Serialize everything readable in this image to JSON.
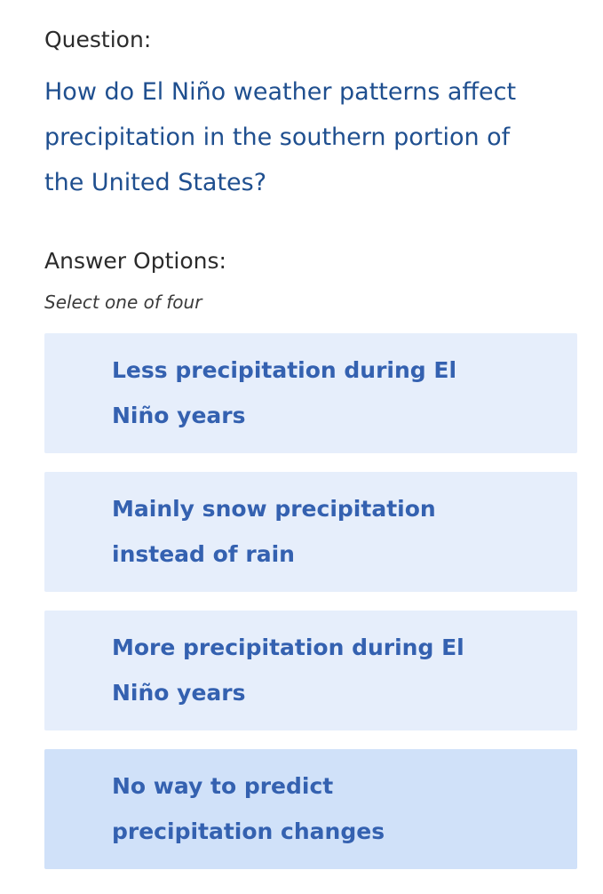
{
  "question_label": "Question:",
  "question": "How do El Niño weather patterns affect precipitation in the southern portion of the United States?",
  "answer_label": "Answer Options:",
  "hint": "Select one of four",
  "options": [
    {
      "label": "Less precipitation during El Niño years",
      "selected": false
    },
    {
      "label": "Mainly snow precipitation instead of rain",
      "selected": false
    },
    {
      "label": "More precipitation during El Niño years",
      "selected": false
    },
    {
      "label": "No way to predict precipitation changes",
      "selected": true
    }
  ],
  "colors": {
    "option_bg": "#e6eefb",
    "option_selected_bg": "#d0e1f9",
    "option_text": "#3461b0",
    "question_text": "#1f4f8f"
  }
}
